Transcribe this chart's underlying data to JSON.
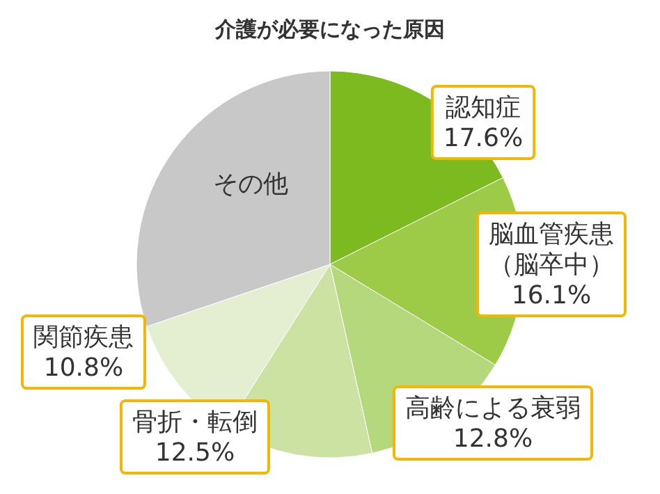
{
  "chart_data": {
    "type": "pie",
    "title": "介護が必要になった原因",
    "categories": [
      "認知症",
      "脳血管疾患（脳卒中）",
      "高齢による衰弱",
      "骨折・転倒",
      "関節疾患",
      "その他"
    ],
    "values": [
      17.6,
      16.1,
      12.8,
      12.5,
      10.8,
      30.2
    ],
    "value_labels": [
      "17.6%",
      "16.1%",
      "12.8%",
      "12.5%",
      "10.8%",
      null
    ],
    "colors": [
      "#7cba1f",
      "#9dcb48",
      "#b6d87c",
      "#cbe2a3",
      "#e4efd1",
      "#c8c8c8"
    ]
  }
}
